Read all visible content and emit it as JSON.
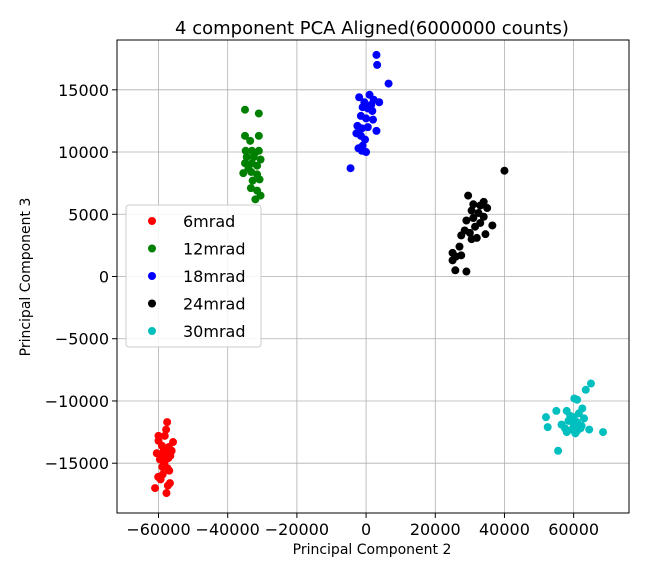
{
  "chart_data": {
    "type": "scatter",
    "title": "4 component PCA Aligned(6000000 counts)",
    "xlabel": "Principal Component 2",
    "ylabel": "Principal Component 3",
    "xlim": [
      -72000,
      76000
    ],
    "ylim": [
      -19000,
      19000
    ],
    "xticks": [
      -60000,
      -40000,
      -20000,
      0,
      20000,
      40000,
      60000
    ],
    "xtick_labels": [
      "−60000",
      "−40000",
      "−20000",
      "0",
      "20000",
      "40000",
      "60000"
    ],
    "yticks": [
      -15000,
      -10000,
      -5000,
      0,
      5000,
      10000,
      15000
    ],
    "ytick_labels": [
      "−15000",
      "−10000",
      "−5000",
      "0",
      "5000",
      "10000",
      "15000"
    ],
    "grid": true,
    "legend_position": "center-left",
    "series": [
      {
        "name": "6mrad",
        "color": "#ff0000",
        "points": [
          [
            -57500,
            -11700
          ],
          [
            -57800,
            -12300
          ],
          [
            -60000,
            -12800
          ],
          [
            -58200,
            -12800
          ],
          [
            -55800,
            -13300
          ],
          [
            -60000,
            -13200
          ],
          [
            -59000,
            -13600
          ],
          [
            -57000,
            -13700
          ],
          [
            -58500,
            -14000
          ],
          [
            -56200,
            -14000
          ],
          [
            -60500,
            -14200
          ],
          [
            -59200,
            -14300
          ],
          [
            -58000,
            -14400
          ],
          [
            -57200,
            -14600
          ],
          [
            -56600,
            -14400
          ],
          [
            -59600,
            -14700
          ],
          [
            -58300,
            -15000
          ],
          [
            -57400,
            -15400
          ],
          [
            -56900,
            -15600
          ],
          [
            -58800,
            -15900
          ],
          [
            -60100,
            -16100
          ],
          [
            -59400,
            -16300
          ],
          [
            -56700,
            -16600
          ],
          [
            -57300,
            -16800
          ],
          [
            -61000,
            -17000
          ],
          [
            -57700,
            -17400
          ],
          [
            -58900,
            -15300
          ],
          [
            -57900,
            -13900
          ]
        ]
      },
      {
        "name": "12mrad",
        "color": "#008000",
        "points": [
          [
            -35000,
            13400
          ],
          [
            -31000,
            13100
          ],
          [
            -35000,
            11300
          ],
          [
            -31000,
            11300
          ],
          [
            -33500,
            10900
          ],
          [
            -34800,
            10100
          ],
          [
            -33000,
            10100
          ],
          [
            -31000,
            10100
          ],
          [
            -34500,
            9600
          ],
          [
            -32500,
            9600
          ],
          [
            -30500,
            9400
          ],
          [
            -35000,
            9100
          ],
          [
            -33000,
            9100
          ],
          [
            -31500,
            8900
          ],
          [
            -35500,
            8300
          ],
          [
            -33200,
            8400
          ],
          [
            -31500,
            8200
          ],
          [
            -30800,
            7800
          ],
          [
            -32800,
            7700
          ],
          [
            -33300,
            7100
          ],
          [
            -31500,
            6900
          ],
          [
            -30500,
            6500
          ],
          [
            -32000,
            6200
          ],
          [
            -34000,
            8700
          ],
          [
            -32200,
            9900
          ]
        ]
      },
      {
        "name": "18mrad",
        "color": "#0000ff",
        "points": [
          [
            3000,
            17800
          ],
          [
            3200,
            17000
          ],
          [
            6500,
            15500
          ],
          [
            -2000,
            14400
          ],
          [
            1000,
            14600
          ],
          [
            -500,
            14000
          ],
          [
            2200,
            14200
          ],
          [
            3800,
            14000
          ],
          [
            1500,
            13800
          ],
          [
            -1000,
            13600
          ],
          [
            500,
            13500
          ],
          [
            1800,
            13300
          ],
          [
            -1500,
            12900
          ],
          [
            0,
            12700
          ],
          [
            2000,
            12600
          ],
          [
            -2500,
            12100
          ],
          [
            -1200,
            11900
          ],
          [
            500,
            12000
          ],
          [
            3000,
            11700
          ],
          [
            -2800,
            11500
          ],
          [
            -1500,
            11300
          ],
          [
            -300,
            11000
          ],
          [
            -1000,
            10500
          ],
          [
            -2200,
            10300
          ],
          [
            -1200,
            10100
          ],
          [
            0,
            10000
          ],
          [
            -4500,
            8700
          ]
        ]
      },
      {
        "name": "24mrad",
        "color": "#000000",
        "points": [
          [
            40000,
            8500
          ],
          [
            29500,
            6500
          ],
          [
            34000,
            6000
          ],
          [
            33000,
            5700
          ],
          [
            31000,
            5800
          ],
          [
            35000,
            5500
          ],
          [
            30500,
            5300
          ],
          [
            32500,
            5100
          ],
          [
            34000,
            4800
          ],
          [
            31000,
            4700
          ],
          [
            29000,
            4500
          ],
          [
            33000,
            4300
          ],
          [
            36500,
            4100
          ],
          [
            31500,
            4000
          ],
          [
            28500,
            3700
          ],
          [
            30000,
            3500
          ],
          [
            34500,
            3400
          ],
          [
            27500,
            3300
          ],
          [
            32000,
            3100
          ],
          [
            30500,
            3000
          ],
          [
            27000,
            2400
          ],
          [
            25000,
            1900
          ],
          [
            26000,
            1600
          ],
          [
            27500,
            1700
          ],
          [
            25000,
            1300
          ],
          [
            25800,
            500
          ],
          [
            29000,
            400
          ]
        ]
      },
      {
        "name": "30mrad",
        "color": "#00bfbf",
        "points": [
          [
            65000,
            -8600
          ],
          [
            63500,
            -9100
          ],
          [
            61000,
            -9900
          ],
          [
            60200,
            -9800
          ],
          [
            62500,
            -10600
          ],
          [
            58000,
            -10800
          ],
          [
            55000,
            -10800
          ],
          [
            61500,
            -11000
          ],
          [
            52000,
            -11300
          ],
          [
            59000,
            -11200
          ],
          [
            60000,
            -11300
          ],
          [
            63000,
            -11400
          ],
          [
            58500,
            -11600
          ],
          [
            61000,
            -11700
          ],
          [
            56500,
            -11900
          ],
          [
            60000,
            -11900
          ],
          [
            52500,
            -12100
          ],
          [
            57500,
            -12200
          ],
          [
            59500,
            -12300
          ],
          [
            62000,
            -12200
          ],
          [
            64500,
            -12300
          ],
          [
            61000,
            -12400
          ],
          [
            58000,
            -12500
          ],
          [
            60500,
            -12600
          ],
          [
            68500,
            -12500
          ],
          [
            55500,
            -14000
          ],
          [
            62300,
            -12000
          ]
        ]
      }
    ]
  }
}
